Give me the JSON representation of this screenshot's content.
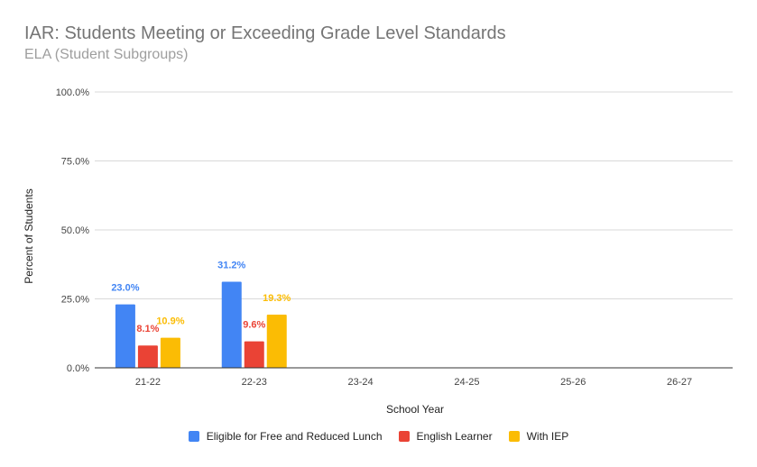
{
  "chart_data": {
    "type": "bar",
    "title": "IAR: Students Meeting or Exceeding Grade Level Standards",
    "subtitle": "ELA (Student Subgroups)",
    "xlabel": "School Year",
    "ylabel": "Percent of Students",
    "categories": [
      "21-22",
      "22-23",
      "23-24",
      "24-25",
      "25-26",
      "26-27"
    ],
    "ylim": [
      0,
      100
    ],
    "yticks": [
      "0.0%",
      "25.0%",
      "50.0%",
      "75.0%",
      "100.0%"
    ],
    "grid": true,
    "legend": "bottom",
    "series": [
      {
        "name": "Eligible for Free and Reduced Lunch",
        "color": "#4285f4",
        "values": [
          23.0,
          31.2,
          null,
          null,
          null,
          null
        ],
        "labels": [
          "23.0%",
          "31.2%",
          "",
          "",
          "",
          ""
        ]
      },
      {
        "name": "English Learner",
        "color": "#ea4335",
        "values": [
          8.1,
          9.6,
          null,
          null,
          null,
          null
        ],
        "labels": [
          "8.1%",
          "9.6%",
          "",
          "",
          "",
          ""
        ]
      },
      {
        "name": "With IEP",
        "color": "#fbbc04",
        "values": [
          10.9,
          19.3,
          null,
          null,
          null,
          null
        ],
        "labels": [
          "10.9%",
          "19.3%",
          "",
          "",
          "",
          ""
        ]
      }
    ]
  }
}
